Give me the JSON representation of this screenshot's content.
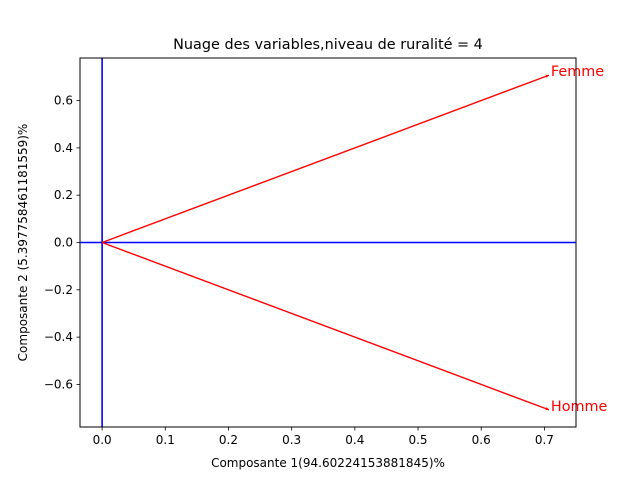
{
  "chart_data": {
    "type": "scatter",
    "title": "Nuage des variables,niveau de ruralité = 4",
    "xlabel": "Composante 1(94.60224153881845)%",
    "ylabel": "Composante 2 (5.397758461181559)%",
    "xlim": [
      -0.035,
      0.75
    ],
    "ylim": [
      -0.78,
      0.78
    ],
    "x_ticks": [
      0.0,
      0.1,
      0.2,
      0.3,
      0.4,
      0.5,
      0.6,
      0.7
    ],
    "x_tick_labels": [
      "0.0",
      "0.1",
      "0.2",
      "0.3",
      "0.4",
      "0.5",
      "0.6",
      "0.7"
    ],
    "y_ticks": [
      -0.6,
      -0.4,
      -0.2,
      0.0,
      0.2,
      0.4,
      0.6
    ],
    "y_tick_labels": [
      "−0.6",
      "−0.4",
      "−0.2",
      "0.0",
      "0.2",
      "0.4",
      "0.6"
    ],
    "grid": false,
    "reference_lines": {
      "x": 0,
      "y": 0,
      "color": "#0000ff"
    },
    "arrow_color": "#ff0000",
    "points": [
      {
        "label": "Femme",
        "x": 0.7071,
        "y": 0.7071
      },
      {
        "label": "Homme",
        "x": 0.7071,
        "y": -0.7071
      }
    ]
  }
}
